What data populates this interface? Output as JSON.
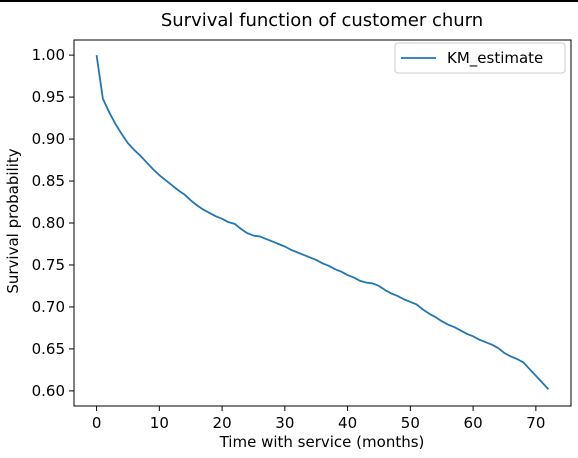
{
  "chart_data": {
    "type": "line",
    "title": "Survival function of customer churn",
    "xlabel": "Time with service (months)",
    "ylabel": "Survival probability",
    "xlim": [
      -3.6,
      75.6
    ],
    "ylim": [
      0.582,
      1.018
    ],
    "xticks": [
      0,
      10,
      20,
      30,
      40,
      50,
      60,
      70
    ],
    "yticks": [
      0.6,
      0.65,
      0.7,
      0.75,
      0.8,
      0.85,
      0.9,
      0.95,
      1.0
    ],
    "xtick_labels": [
      "0",
      "10",
      "20",
      "30",
      "40",
      "50",
      "60",
      "70"
    ],
    "ytick_labels": [
      "0.60",
      "0.65",
      "0.70",
      "0.75",
      "0.80",
      "0.85",
      "0.90",
      "0.95",
      "1.00"
    ],
    "grid": false,
    "legend_position": "top-right",
    "colors": {
      "series": "#1f77b4",
      "axes": "#000000",
      "background": "#ffffff"
    },
    "series": [
      {
        "name": "KM_estimate",
        "x": [
          0,
          1,
          2,
          3,
          4,
          5,
          6,
          7,
          8,
          9,
          10,
          11,
          12,
          13,
          14,
          15,
          16,
          17,
          18,
          19,
          20,
          21,
          22,
          23,
          24,
          25,
          26,
          27,
          28,
          29,
          30,
          31,
          32,
          33,
          34,
          35,
          36,
          37,
          38,
          39,
          40,
          41,
          42,
          43,
          44,
          45,
          46,
          47,
          48,
          49,
          50,
          51,
          52,
          53,
          54,
          55,
          56,
          57,
          58,
          59,
          60,
          61,
          62,
          63,
          64,
          65,
          66,
          67,
          68,
          69,
          70,
          71,
          72
        ],
        "values": [
          1.0,
          0.948,
          0.932,
          0.918,
          0.906,
          0.895,
          0.887,
          0.88,
          0.872,
          0.864,
          0.857,
          0.851,
          0.845,
          0.839,
          0.834,
          0.827,
          0.821,
          0.816,
          0.812,
          0.808,
          0.805,
          0.801,
          0.799,
          0.793,
          0.788,
          0.785,
          0.784,
          0.781,
          0.778,
          0.775,
          0.772,
          0.768,
          0.765,
          0.762,
          0.759,
          0.756,
          0.752,
          0.749,
          0.745,
          0.742,
          0.738,
          0.735,
          0.731,
          0.729,
          0.728,
          0.725,
          0.72,
          0.716,
          0.713,
          0.709,
          0.706,
          0.703,
          0.697,
          0.692,
          0.688,
          0.683,
          0.679,
          0.676,
          0.672,
          0.668,
          0.665,
          0.661,
          0.658,
          0.655,
          0.651,
          0.645,
          0.641,
          0.638,
          0.634,
          0.626,
          0.618,
          0.61,
          0.602
        ]
      }
    ]
  }
}
